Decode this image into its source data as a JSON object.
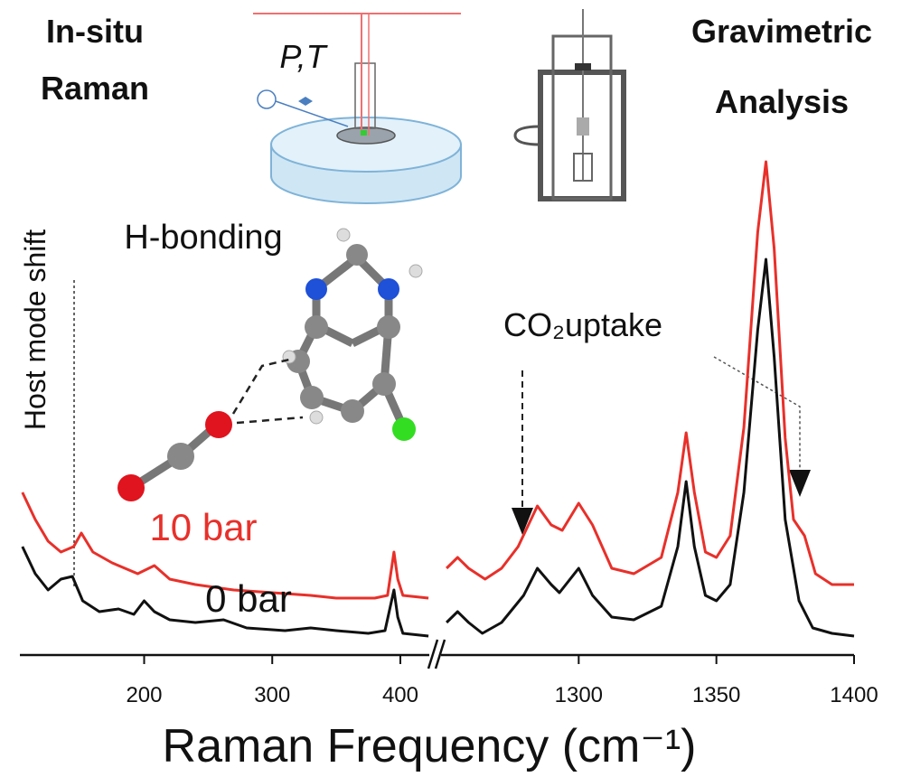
{
  "chart_data": {
    "type": "line",
    "xlabel": "Raman Frequency (cm⁻¹)",
    "segments": [
      {
        "xlim": [
          103,
          422.6
        ],
        "xticks": [
          200,
          300,
          400
        ]
      },
      {
        "xlim": [
          1250,
          1400
        ],
        "xticks": [
          1300,
          1350,
          1400
        ]
      }
    ],
    "ylim": [
      0,
      100
    ],
    "annotations": [
      "In-situ",
      "Raman",
      "Gravimetric",
      "Analysis",
      "P,T",
      "H-bonding",
      "Host mode shift",
      "CO₂uptake"
    ],
    "series": [
      {
        "name": "10 bar",
        "color": "#e8302a",
        "x": [
          105,
          115,
          125,
          135,
          145,
          151,
          160,
          175,
          195,
          208,
          220,
          240,
          270,
          300,
          330,
          350,
          380,
          390,
          395,
          398,
          402,
          422,
          null,
          1252,
          1256,
          1260,
          1266,
          1272,
          1278,
          1285,
          1290,
          1294,
          1300,
          1305,
          1312,
          1320,
          1330,
          1336,
          1339,
          1342,
          1346,
          1350,
          1355,
          1360,
          1365,
          1368,
          1371,
          1375,
          1378,
          1382,
          1386,
          1392,
          1400
        ],
        "values": [
          30,
          25,
          21,
          19,
          20,
          22.5,
          19,
          17,
          15,
          16.5,
          14,
          13,
          12,
          11.5,
          11,
          10.5,
          10.5,
          11,
          19,
          14,
          11,
          10.5,
          null,
          16,
          18,
          16,
          14,
          16,
          20,
          27.5,
          24,
          23,
          28,
          24,
          16,
          15,
          18,
          30,
          41,
          30,
          19,
          18,
          22,
          42,
          78,
          91,
          75,
          40,
          25,
          22,
          15,
          13,
          13
        ]
      },
      {
        "name": "0 bar",
        "color": "#111111",
        "x": [
          105,
          115,
          125,
          135,
          144,
          152,
          165,
          180,
          192,
          200,
          208,
          220,
          240,
          262,
          280,
          310,
          330,
          350,
          375,
          388,
          395,
          398,
          402,
          422,
          null,
          1252,
          1256,
          1260,
          1265,
          1272,
          1280,
          1285,
          1290,
          1293,
          1300,
          1305,
          1312,
          1320,
          1330,
          1336,
          1339,
          1342,
          1346,
          1350,
          1355,
          1360,
          1365,
          1368,
          1371,
          1375,
          1380,
          1385,
          1392,
          1400
        ],
        "values": [
          20,
          15,
          12,
          14,
          14.5,
          10,
          8,
          8.5,
          7.5,
          10,
          8,
          6.5,
          6,
          6.5,
          5,
          4.5,
          5,
          4.5,
          4,
          4.5,
          12,
          7,
          4,
          3.5,
          null,
          6,
          8,
          6,
          4,
          6,
          11,
          16,
          13,
          11.5,
          16,
          11,
          7,
          6.5,
          9,
          20,
          32,
          20,
          11,
          10,
          13,
          30,
          60,
          73,
          55,
          25,
          10,
          5,
          4,
          3.5
        ]
      }
    ]
  }
}
